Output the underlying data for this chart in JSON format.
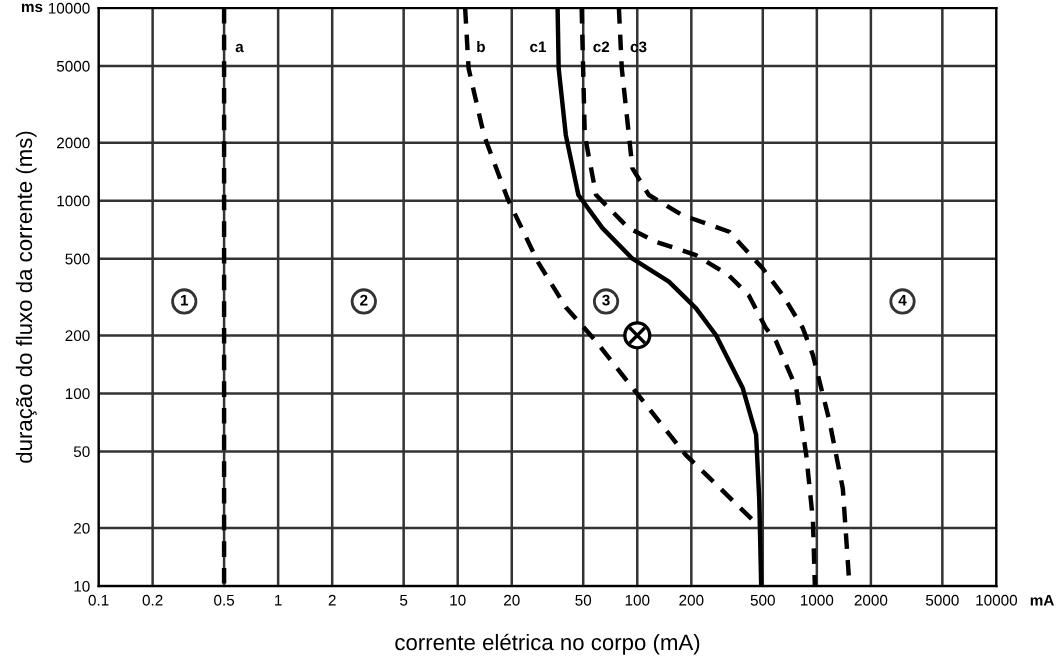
{
  "chart_data": {
    "type": "line",
    "xlabel": "corrente elétrica no corpo (mA)",
    "ylabel": "duração do fluxo da corrente (ms)",
    "log": "xy",
    "grid": true,
    "xlim": [
      0.1,
      10000
    ],
    "ylim": [
      10,
      10000
    ],
    "xticks": [
      0.1,
      0.2,
      0.5,
      1,
      2,
      5,
      10,
      20,
      50,
      100,
      200,
      500,
      1000,
      2000,
      5000,
      10000
    ],
    "yticks": [
      10,
      20,
      50,
      100,
      200,
      500,
      1000,
      2000,
      5000,
      10000
    ],
    "series": [
      {
        "name": "a",
        "color": "#000000",
        "line_style": "dashed",
        "x": [
          0.5,
          0.5
        ],
        "values": [
          10000,
          10
        ]
      },
      {
        "name": "b",
        "color": "#000000",
        "line_style": "dashed",
        "x": [
          11,
          11.5,
          14,
          19,
          28,
          40,
          59,
          94,
          186,
          440
        ],
        "values": [
          10000,
          4850,
          2190,
          1020,
          480,
          280,
          186,
          107,
          48,
          22
        ]
      },
      {
        "name": "c1",
        "color": "#000000",
        "line_style": "solid",
        "x": [
          36,
          36.5,
          40,
          47,
          64,
          94,
          150,
          212,
          274,
          386,
          459,
          478,
          490
        ],
        "values": [
          10000,
          4850,
          2190,
          1070,
          720,
          500,
          380,
          277,
          201,
          107,
          61,
          28,
          10
        ]
      },
      {
        "name": "c2",
        "color": "#000000",
        "line_style": "dashed",
        "x": [
          49,
          51,
          59,
          89,
          127,
          212,
          322,
          417,
          521,
          593,
          767,
          873,
          951,
          975
        ],
        "values": [
          10000,
          2190,
          1070,
          724,
          612,
          522,
          411,
          324,
          218,
          186,
          107,
          48,
          22,
          10
        ]
      },
      {
        "name": "c3",
        "color": "#000000",
        "line_style": "dashed",
        "x": [
          79,
          82,
          94,
          116,
          178,
          325,
          499,
          645,
          836,
          951,
          1175,
          1396,
          1520
        ],
        "values": [
          10000,
          4850,
          1470,
          1070,
          842,
          690,
          446,
          324,
          218,
          158,
          72,
          32,
          10
        ]
      },
      {
        "type": "scatter",
        "marker": "circle",
        "color": "#000000",
        "x": [
          100
        ],
        "values": [
          200
        ]
      }
    ],
    "annotations": [
      "ms",
      "mA",
      {
        "text": "1",
        "x": 0.3,
        "y": 300
      },
      {
        "text": "2",
        "x": 3,
        "y": 300
      },
      {
        "text": "3",
        "x": 67,
        "y": 300
      },
      {
        "text": "4",
        "x": 3000,
        "y": 300
      }
    ]
  }
}
